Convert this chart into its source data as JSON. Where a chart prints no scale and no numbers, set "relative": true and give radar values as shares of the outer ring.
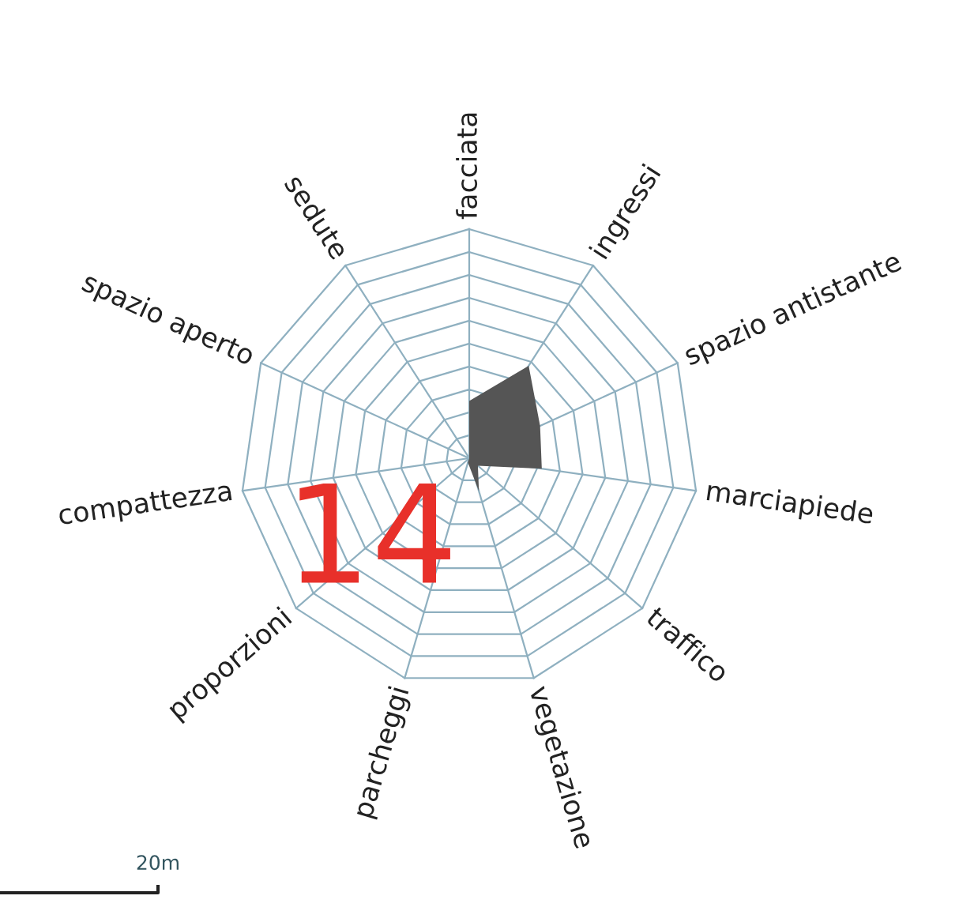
{
  "chart_data": {
    "type": "radar",
    "relative": true,
    "categories": [
      "facciata",
      "ingressi",
      "spazio antistante",
      "marciapiede",
      "traffico",
      "vegetazione",
      "parcheggi",
      "proporzioni",
      "compattezza",
      "spazio aperto",
      "sedute"
    ],
    "series": [
      {
        "color": "#555555",
        "values": [
          0.25,
          0.48,
          0.34,
          0.32,
          0.05,
          0.15,
          0.02,
          0.0,
          0.0,
          0.0,
          0.0
        ]
      }
    ],
    "annotations": [
      "14",
      "20m"
    ]
  }
}
